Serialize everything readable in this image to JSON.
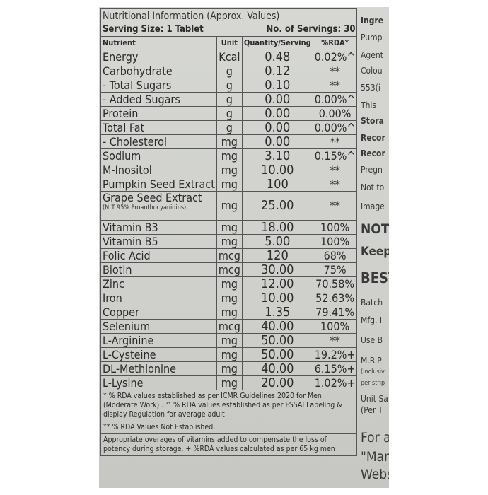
{
  "title": "Nutritional Information (Approx. Values)",
  "serving_size": "Serving Size: 1 Tablet",
  "servings": "No. of Servings: 30",
  "headers": [
    "Nutrient",
    "Unit",
    "Quantity/Serving",
    "%RDA*"
  ],
  "rows": [
    [
      "Energy",
      "Kcal",
      "0.48",
      "0.02%^"
    ],
    [
      "Carbohydrate",
      "g",
      "0.12",
      "**"
    ],
    [
      "- Total Sugars",
      "g",
      "0.10",
      "**"
    ],
    [
      "- Added Sugars",
      "g",
      "0.00",
      "0.00%^"
    ],
    [
      "Protein",
      "g",
      "0.00",
      "0.00%"
    ],
    [
      "Total Fat",
      "g",
      "0.00",
      "0.00%^"
    ],
    [
      "- Cholesterol",
      "mg",
      "0.00",
      "**"
    ],
    [
      "Sodium",
      "mg",
      "3.10",
      "0.15%^"
    ],
    [
      "M-Inositol",
      "mg",
      "10.00",
      "**"
    ],
    [
      "Pumpkin Seed Extract",
      "mg",
      "100",
      "**"
    ],
    [
      "Grape Seed Extract",
      "mg",
      "25.00",
      "**",
      "(NLT 95% Proanthocyanidins)"
    ],
    [
      "Vitamin B3",
      "mg",
      "18.00",
      "100%"
    ],
    [
      "Vitamin B5",
      "mg",
      "5.00",
      "100%"
    ],
    [
      "Folic Acid",
      "mcg",
      "120",
      "68%"
    ],
    [
      "Biotin",
      "mcg",
      "30.00",
      "75%"
    ],
    [
      "Zinc",
      "mg",
      "12.00",
      "70.58%"
    ],
    [
      "Iron",
      "mg",
      "10.00",
      "52.63%"
    ],
    [
      "Copper",
      "mg",
      "1.35",
      "79.41%"
    ],
    [
      "Selenium",
      "mcg",
      "40.00",
      "100%"
    ],
    [
      "L-Arginine",
      "mg",
      "50.00",
      "**"
    ],
    [
      "L-Cysteine",
      "mg",
      "50.00",
      "19.2%+"
    ],
    [
      "DL-Methionine",
      "mg",
      "40.00",
      "6.15%+"
    ],
    [
      "L-Lysine",
      "mg",
      "20.00",
      "1.02%+"
    ]
  ],
  "footnotes": [
    "* % RDA values established as per ICMR Guidelines 2020 for Men (Moderate Work) . ^ % RDA values established as per FSSAI Labeling & display Regulation for average adult",
    "** % RDA Values Not Established.",
    "Appropriate overages of vitamins added to compensate the loss of potency during storage. + %RDA values calculated as per  65 kg men"
  ],
  "side_text": [
    {
      "t": "Ingre",
      "b": true
    },
    {
      "t": "Pump"
    },
    {
      "t": "Agent"
    },
    {
      "t": "Colou"
    },
    {
      "t": "553(i"
    },
    {
      "t": "This"
    },
    {
      "t": "Stora",
      "b": true
    },
    {
      "t": "Recor",
      "b": true
    },
    {
      "t": "Recor",
      "b": true
    },
    {
      "t": "Pregn"
    },
    {
      "t": "Not to"
    },
    {
      "t": "Image"
    },
    {
      "t": "NOT",
      "b": true,
      "s": 19
    },
    {
      "t": "Keep",
      "b": true,
      "s": 17
    },
    {
      "t": "BEST",
      "b": true,
      "s": 20
    },
    {
      "t": "Batch"
    },
    {
      "t": "Mfg. I"
    },
    {
      "t": "Use B"
    },
    {
      "t": "M.R.P"
    },
    {
      "t": "(Inclusiv",
      "s": 9
    },
    {
      "t": "per strip",
      "s": 9
    },
    {
      "t": "Unit Sa"
    },
    {
      "t": "(Per T"
    },
    {
      "t": "For ar",
      "s": 19
    },
    {
      "t": "\"Mark",
      "s": 19
    },
    {
      "t": "Websi",
      "s": 19
    }
  ]
}
